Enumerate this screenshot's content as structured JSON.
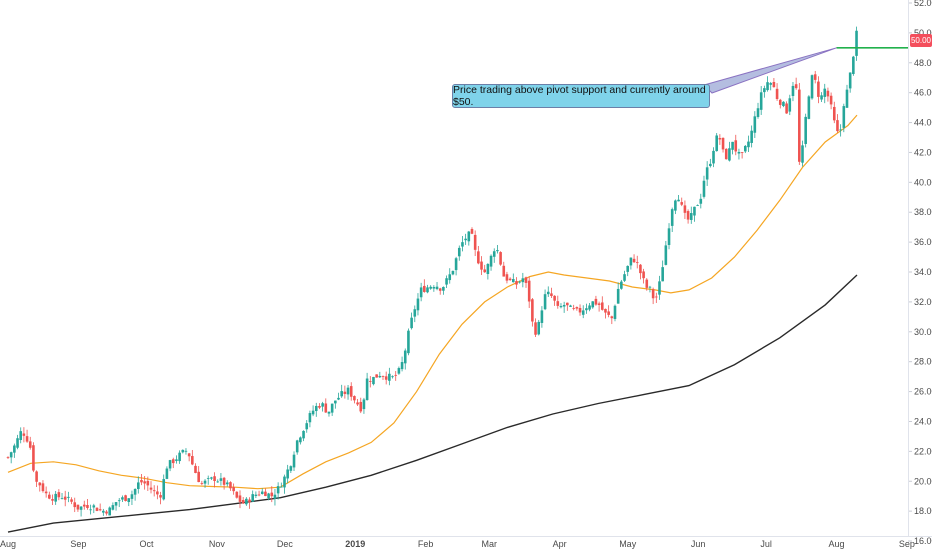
{
  "chart_data": {
    "type": "candlestick",
    "y_axis": {
      "ylim": [
        15.4,
        52.2
      ],
      "ticks": [
        "52.00",
        "50.00",
        "48.00",
        "46.00",
        "44.00",
        "42.00",
        "40.00",
        "38.00",
        "36.00",
        "34.00",
        "32.00",
        "30.00",
        "28.00",
        "26.00",
        "24.00",
        "22.00",
        "20.00",
        "18.00",
        "16.00"
      ],
      "position": "right"
    },
    "x_axis": {
      "labels": [
        {
          "label": "Aug",
          "day": 0
        },
        {
          "label": "Sep",
          "day": 31
        },
        {
          "label": "Oct",
          "day": 61
        },
        {
          "label": "Nov",
          "day": 92
        },
        {
          "label": "Dec",
          "day": 122
        },
        {
          "label": "2019",
          "day": 153
        },
        {
          "label": "Feb",
          "day": 184
        },
        {
          "label": "Mar",
          "day": 212
        },
        {
          "label": "Apr",
          "day": 243
        },
        {
          "label": "May",
          "day": 273
        },
        {
          "label": "Jun",
          "day": 304
        },
        {
          "label": "Jul",
          "day": 334
        },
        {
          "label": "Aug",
          "day": 365
        },
        {
          "label": "Sep",
          "day": 396
        }
      ]
    },
    "close_path": [
      [
        0,
        21.6
      ],
      [
        3,
        22.4
      ],
      [
        6,
        23.4
      ],
      [
        8,
        23.0
      ],
      [
        10,
        22.2
      ],
      [
        12,
        20.0
      ],
      [
        14,
        19.8
      ],
      [
        17,
        19.1
      ],
      [
        20,
        18.9
      ],
      [
        24,
        19.0
      ],
      [
        28,
        18.6
      ],
      [
        31,
        18.2
      ],
      [
        35,
        18.4
      ],
      [
        38,
        18.3
      ],
      [
        41,
        18.0
      ],
      [
        45,
        18.1
      ],
      [
        48,
        18.7
      ],
      [
        52,
        18.9
      ],
      [
        55,
        19.2
      ],
      [
        58,
        20.0
      ],
      [
        61,
        19.8
      ],
      [
        64,
        19.3
      ],
      [
        67,
        19.0
      ],
      [
        70,
        21.0
      ],
      [
        73,
        21.4
      ],
      [
        76,
        21.8
      ],
      [
        79,
        22.1
      ],
      [
        82,
        20.8
      ],
      [
        85,
        19.8
      ],
      [
        88,
        20.0
      ],
      [
        91,
        20.2
      ],
      [
        95,
        19.9
      ],
      [
        98,
        19.5
      ],
      [
        101,
        18.8
      ],
      [
        104,
        18.5
      ],
      [
        107,
        18.9
      ],
      [
        110,
        19.2
      ],
      [
        113,
        19.3
      ],
      [
        116,
        19.0
      ],
      [
        119,
        19.5
      ],
      [
        122,
        20.3
      ],
      [
        125,
        21.4
      ],
      [
        127,
        22.6
      ],
      [
        129,
        23.2
      ],
      [
        132,
        24.1
      ],
      [
        135,
        24.9
      ],
      [
        138,
        25.2
      ],
      [
        141,
        24.6
      ],
      [
        144,
        25.4
      ],
      [
        147,
        25.8
      ],
      [
        150,
        26.1
      ],
      [
        153,
        25.4
      ],
      [
        156,
        24.8
      ],
      [
        158,
        26.8
      ],
      [
        161,
        26.9
      ],
      [
        164,
        27.2
      ],
      [
        167,
        27.0
      ],
      [
        170,
        26.9
      ],
      [
        173,
        27.5
      ],
      [
        175,
        28.8
      ],
      [
        177,
        30.3
      ],
      [
        179,
        31.5
      ],
      [
        182,
        32.8
      ],
      [
        185,
        33.0
      ],
      [
        188,
        33.2
      ],
      [
        191,
        32.9
      ],
      [
        194,
        33.6
      ],
      [
        196,
        34.2
      ],
      [
        199,
        35.6
      ],
      [
        201,
        36.2
      ],
      [
        204,
        36.6
      ],
      [
        206,
        35.2
      ],
      [
        208,
        34.5
      ],
      [
        210,
        34.0
      ],
      [
        212,
        34.6
      ],
      [
        214,
        35.6
      ],
      [
        216,
        35.4
      ],
      [
        218,
        33.8
      ],
      [
        221,
        33.4
      ],
      [
        224,
        33.2
      ],
      [
        227,
        33.6
      ],
      [
        229,
        32.8
      ],
      [
        231,
        30.6
      ],
      [
        233,
        29.8
      ],
      [
        235,
        31.5
      ],
      [
        237,
        32.6
      ],
      [
        240,
        32.3
      ],
      [
        242,
        31.5
      ],
      [
        245,
        31.8
      ],
      [
        248,
        31.5
      ],
      [
        251,
        31.3
      ],
      [
        254,
        31.6
      ],
      [
        257,
        32.0
      ],
      [
        260,
        31.9
      ],
      [
        263,
        31.2
      ],
      [
        266,
        30.9
      ],
      [
        269,
        33.0
      ],
      [
        272,
        34.0
      ],
      [
        275,
        35.0
      ],
      [
        277,
        34.6
      ],
      [
        279,
        33.8
      ],
      [
        281,
        33.0
      ],
      [
        283,
        32.8
      ],
      [
        285,
        32.0
      ],
      [
        287,
        33.2
      ],
      [
        289,
        35.0
      ],
      [
        291,
        37.0
      ],
      [
        293,
        38.7
      ],
      [
        295,
        39.3
      ],
      [
        297,
        38.2
      ],
      [
        299,
        37.4
      ],
      [
        301,
        37.7
      ],
      [
        303,
        38.4
      ],
      [
        305,
        38.9
      ],
      [
        307,
        40.5
      ],
      [
        309,
        41.2
      ],
      [
        311,
        42.4
      ],
      [
        313,
        43.3
      ],
      [
        315,
        42.0
      ],
      [
        317,
        41.6
      ],
      [
        319,
        42.9
      ],
      [
        321,
        42.0
      ],
      [
        323,
        41.6
      ],
      [
        325,
        42.3
      ],
      [
        327,
        43.0
      ],
      [
        329,
        44.3
      ],
      [
        331,
        45.5
      ],
      [
        333,
        46.3
      ],
      [
        335,
        46.8
      ],
      [
        337,
        46.5
      ],
      [
        339,
        45.6
      ],
      [
        341,
        45.3
      ],
      [
        343,
        44.8
      ],
      [
        345,
        46.2
      ],
      [
        347,
        47.2
      ],
      [
        348,
        42.2
      ],
      [
        349,
        40.7
      ],
      [
        351,
        43.8
      ],
      [
        353,
        46.2
      ],
      [
        355,
        47.5
      ],
      [
        356,
        46.2
      ],
      [
        358,
        45.6
      ],
      [
        360,
        46.3
      ],
      [
        362,
        45.4
      ],
      [
        364,
        44.0
      ],
      [
        365,
        43.2
      ],
      [
        367,
        43.6
      ],
      [
        368,
        45.2
      ],
      [
        370,
        46.3
      ],
      [
        371,
        47.2
      ],
      [
        372,
        48.0
      ],
      [
        373,
        49.5
      ],
      [
        374,
        50.0
      ]
    ],
    "series": [
      {
        "name": "",
        "color": "#f5a623",
        "points": [
          [
            0,
            20.6
          ],
          [
            10,
            21.2
          ],
          [
            20,
            21.3
          ],
          [
            30,
            21.1
          ],
          [
            40,
            20.7
          ],
          [
            50,
            20.4
          ],
          [
            60,
            20.2
          ],
          [
            70,
            19.9
          ],
          [
            80,
            19.7
          ],
          [
            90,
            19.65
          ],
          [
            100,
            19.6
          ],
          [
            110,
            19.5
          ],
          [
            120,
            19.6
          ],
          [
            130,
            20.5
          ],
          [
            140,
            21.3
          ],
          [
            150,
            21.9
          ],
          [
            160,
            22.6
          ],
          [
            170,
            23.9
          ],
          [
            180,
            26.0
          ],
          [
            190,
            28.5
          ],
          [
            200,
            30.5
          ],
          [
            210,
            32.0
          ],
          [
            220,
            33.0
          ],
          [
            230,
            33.7
          ],
          [
            238,
            34.0
          ],
          [
            245,
            33.8
          ],
          [
            255,
            33.6
          ],
          [
            265,
            33.4
          ],
          [
            275,
            33.0
          ],
          [
            285,
            32.8
          ],
          [
            292,
            32.6
          ],
          [
            300,
            32.8
          ],
          [
            310,
            33.6
          ],
          [
            320,
            35.0
          ],
          [
            330,
            36.8
          ],
          [
            340,
            38.8
          ],
          [
            350,
            41.0
          ],
          [
            360,
            42.7
          ],
          [
            370,
            43.8
          ],
          [
            374,
            44.5
          ]
        ]
      },
      {
        "name": "",
        "color": "#2a2a2a",
        "points": [
          [
            0,
            16.6
          ],
          [
            20,
            17.2
          ],
          [
            40,
            17.5
          ],
          [
            60,
            17.8
          ],
          [
            80,
            18.1
          ],
          [
            100,
            18.5
          ],
          [
            120,
            18.9
          ],
          [
            140,
            19.6
          ],
          [
            160,
            20.4
          ],
          [
            180,
            21.4
          ],
          [
            200,
            22.5
          ],
          [
            220,
            23.6
          ],
          [
            240,
            24.5
          ],
          [
            260,
            25.2
          ],
          [
            280,
            25.8
          ],
          [
            300,
            26.4
          ],
          [
            320,
            27.8
          ],
          [
            340,
            29.6
          ],
          [
            360,
            31.8
          ],
          [
            374,
            33.8
          ]
        ]
      }
    ],
    "pivot_level": 49.0,
    "pivot_start_day": 365,
    "last_price": "50.00",
    "annotation": "Price trading above pivot support and currently around $50.",
    "up_color": "#26a69a",
    "down_color": "#ef5350"
  }
}
